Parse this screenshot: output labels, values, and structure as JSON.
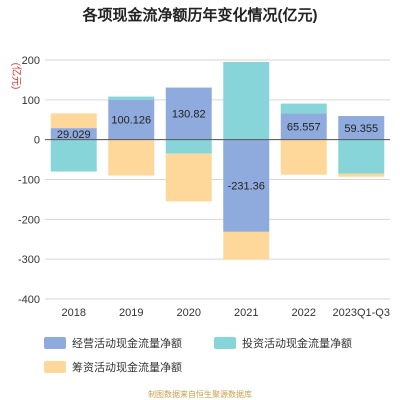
{
  "chart_data": {
    "type": "bar",
    "stacked": true,
    "title": "各项现金流净额历年变化情况(亿元)",
    "ylabel": "(亿元)",
    "categories": [
      "2018",
      "2019",
      "2020",
      "2021",
      "2022",
      "2023Q1-Q3"
    ],
    "ylim": [
      -400,
      200
    ],
    "yticks": [
      -400,
      -300,
      -200,
      -100,
      0,
      100,
      200
    ],
    "grid": true,
    "legend_position": "bottom",
    "series": [
      {
        "name": "经营活动现金流量净额",
        "color": "#8faadc",
        "values": [
          29.029,
          100.126,
          130.82,
          -231.36,
          65.557,
          59.355
        ]
      },
      {
        "name": "投资活动现金流量净额",
        "color": "#87d5d8",
        "values": [
          -80,
          8,
          -35,
          195,
          25,
          -85
        ]
      },
      {
        "name": "筹资活动现金流量净额",
        "color": "#fed89b",
        "values": [
          37,
          -90,
          -120,
          -70,
          -88,
          -8
        ]
      }
    ],
    "data_labels": [
      "29.029",
      "100.126",
      "130.82",
      "-231.36",
      "65.557",
      "59.355"
    ]
  },
  "footer": "制图数据来自恒生聚源数据库"
}
